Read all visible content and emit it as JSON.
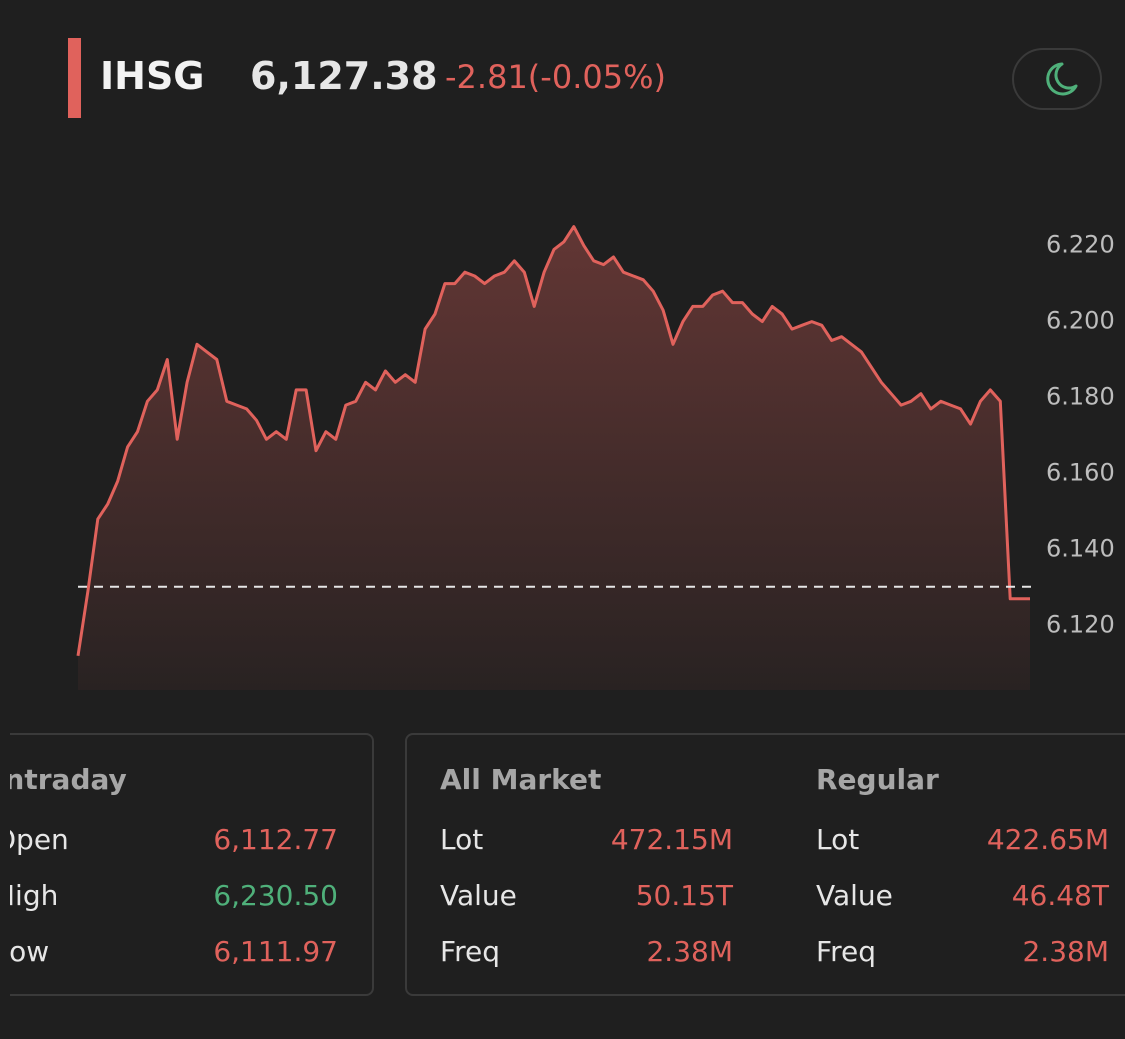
{
  "header": {
    "ticker": "IHSG",
    "price": "6,127.38",
    "change": "-2.81(-0.05%)"
  },
  "chart_data": {
    "type": "line",
    "color": "#e0625c",
    "values": [
      6112,
      6129,
      6148,
      6152,
      6158,
      6167,
      6171,
      6179,
      6182,
      6190,
      6169,
      6184,
      6194,
      6192,
      6190,
      6179,
      6178,
      6177,
      6174,
      6169,
      6171,
      6169,
      6182,
      6182,
      6166,
      6171,
      6169,
      6178,
      6179,
      6184,
      6182,
      6187,
      6184,
      6186,
      6184,
      6198,
      6202,
      6210,
      6210,
      6213,
      6212,
      6210,
      6212,
      6213,
      6216,
      6213,
      6204,
      6213,
      6219,
      6221,
      6225,
      6220,
      6216,
      6215,
      6217,
      6213,
      6212,
      6211,
      6208,
      6203,
      6194,
      6200,
      6204,
      6204,
      6207,
      6208,
      6205,
      6205,
      6202,
      6200,
      6204,
      6202,
      6198,
      6199,
      6200,
      6199,
      6195,
      6196,
      6194,
      6192,
      6188,
      6184,
      6181,
      6178,
      6179,
      6181,
      6177,
      6179,
      6178,
      6177,
      6173,
      6179,
      6182,
      6179,
      6127,
      6127,
      6127
    ],
    "ylim": [
      6103,
      6232
    ],
    "yticks": [
      {
        "value": 6120,
        "label": "6.120"
      },
      {
        "value": 6140,
        "label": "6.140"
      },
      {
        "value": 6160,
        "label": "6.160"
      },
      {
        "value": 6180,
        "label": "6.180"
      },
      {
        "value": 6200,
        "label": "6.200"
      },
      {
        "value": 6220,
        "label": "6.220"
      }
    ],
    "reference_line": 6130.19
  },
  "intraday": {
    "title": "Intraday",
    "rows": [
      {
        "label": "Open",
        "value": "6,112.77"
      },
      {
        "label": "High",
        "value": "6,230.50"
      },
      {
        "label": "Low",
        "value": "6,111.97"
      }
    ]
  },
  "all_market": {
    "title": "All Market",
    "rows": [
      {
        "label": "Lot",
        "value": "472.15M"
      },
      {
        "label": "Value",
        "value": "50.15T"
      },
      {
        "label": "Freq",
        "value": "2.38M"
      }
    ]
  },
  "regular": {
    "title": "Regular",
    "rows": [
      {
        "label": "Lot",
        "value": "422.65M"
      },
      {
        "label": "Value",
        "value": "46.48T"
      },
      {
        "label": "Freq",
        "value": "2.38M"
      }
    ]
  }
}
